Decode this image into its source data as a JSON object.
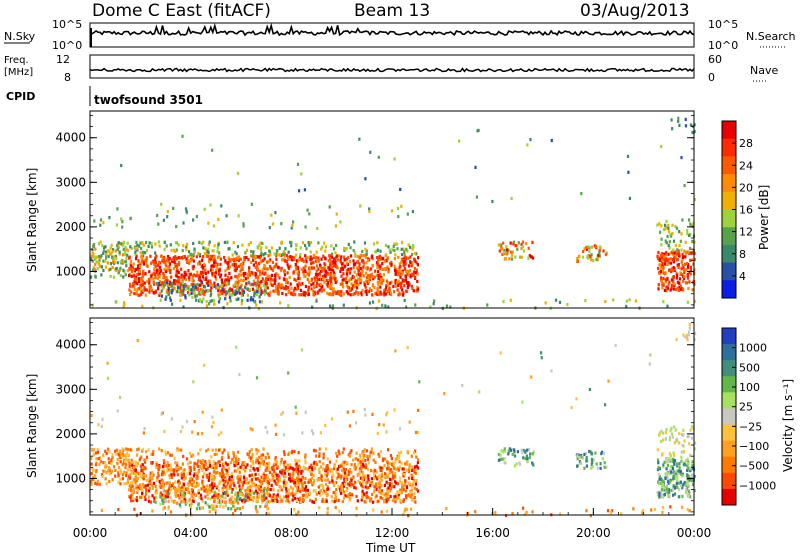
{
  "header": {
    "station": "Dome C East (fitACF)",
    "beam": "Beam 13",
    "date": "03/Aug/2013"
  },
  "chart_data": [
    {
      "type": "line",
      "panel": "noise",
      "left_label": "N.Sky",
      "right_label": "N.Search",
      "left_ticks": [
        "10^5",
        "10^0"
      ],
      "right_ticks": [
        "10^5",
        "10^0"
      ]
    },
    {
      "type": "line",
      "panel": "frequency",
      "left_label_lines": [
        "Freq.",
        "[MHz]"
      ],
      "left_ticks": [
        "12",
        "8"
      ],
      "right_label": "Nave",
      "right_ticks": [
        "60",
        "0"
      ]
    },
    {
      "type": "table",
      "panel": "cpid",
      "label": "CPID",
      "segments": [
        {
          "start_hour": 0,
          "name": "twofsound 3501"
        }
      ]
    },
    {
      "type": "heatmap",
      "panel": "power",
      "ylabel": "Slant Range [km]",
      "ylim": [
        180,
        4600
      ],
      "yticks": [
        1000,
        2000,
        3000,
        4000
      ],
      "xlim": [
        0,
        24
      ],
      "colorbar": {
        "label": "Power [dB]",
        "ticks": [
          "4",
          "8",
          "12",
          "16",
          "20",
          "24",
          "28"
        ],
        "colors": [
          "#0a1ee6",
          "#2a4fa8",
          "#3a8a6a",
          "#58a24e",
          "#9fd23a",
          "#f0b000",
          "#ff8c00",
          "#ff5a00",
          "#ff2a00",
          "#e60000"
        ]
      }
    },
    {
      "type": "heatmap",
      "panel": "velocity",
      "ylabel": "Slant Range [km]",
      "ylim": [
        180,
        4600
      ],
      "yticks": [
        1000,
        2000,
        3000,
        4000
      ],
      "xlim": [
        0,
        24
      ],
      "colorbar": {
        "label": "Velocity [m s⁻¹]",
        "ticks": [
          "1000",
          "500",
          "100",
          "25",
          "−25",
          "−100",
          "−500",
          "−1000"
        ],
        "colors": [
          "#2040c0",
          "#2f6f9e",
          "#3f8f7a",
          "#62b64a",
          "#a8e060",
          "#c8c8c0",
          "#ffc040",
          "#ffa020",
          "#ff7a00",
          "#ff4a00",
          "#e60000"
        ]
      }
    }
  ],
  "x_axis": {
    "label": "Time UT",
    "ticks": [
      "00:00",
      "04:00",
      "08:00",
      "12:00",
      "16:00",
      "20:00",
      "00:00"
    ],
    "hours": [
      0,
      4,
      8,
      12,
      16,
      20,
      24
    ]
  }
}
